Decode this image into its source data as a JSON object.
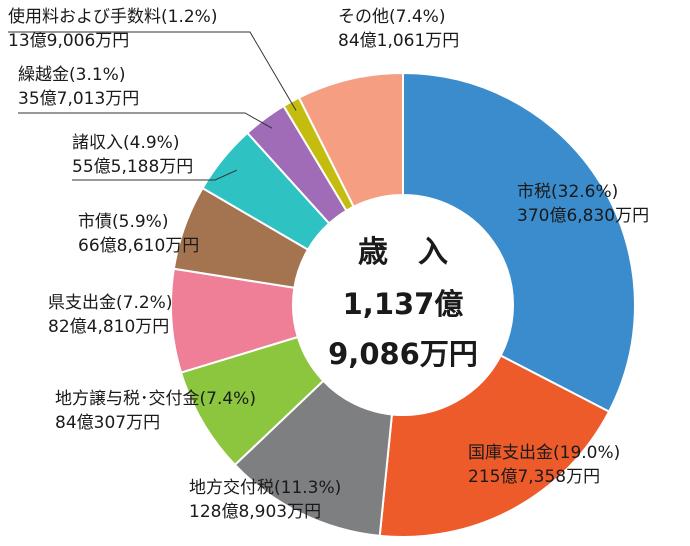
{
  "chart_data": {
    "type": "pie",
    "title": "歳　入",
    "total_line1": "1,137億",
    "total_line2": "9,086万円",
    "slices": [
      {
        "name": "市税",
        "percent": 32.6,
        "pct_label": "(32.6%)",
        "amount": "370億6,830万円",
        "color": "#3a8ccc"
      },
      {
        "name": "国庫支出金",
        "percent": 19.0,
        "pct_label": "(19.0%)",
        "amount": "215億7,358万円",
        "color": "#ee5b2b"
      },
      {
        "name": "地方交付税",
        "percent": 11.3,
        "pct_label": "(11.3%)",
        "amount": "128億8,903万円",
        "color": "#7e7f81"
      },
      {
        "name": "地方譲与税･交付金",
        "percent": 7.4,
        "pct_label": "(7.4%)",
        "amount": "84億307万円",
        "color": "#8cc63f"
      },
      {
        "name": "県支出金",
        "percent": 7.2,
        "pct_label": "(7.2%)",
        "amount": "82億4,810万円",
        "color": "#ef7f97"
      },
      {
        "name": "市債",
        "percent": 5.9,
        "pct_label": "(5.9%)",
        "amount": "66億8,610万円",
        "color": "#a47450"
      },
      {
        "name": "諸収入",
        "percent": 4.9,
        "pct_label": "(4.9%)",
        "amount": "55億5,188万円",
        "color": "#2ec2c2"
      },
      {
        "name": "繰越金",
        "percent": 3.1,
        "pct_label": "(3.1%)",
        "amount": "35億7,013万円",
        "color": "#a06cb8"
      },
      {
        "name": "使用料および手数料",
        "percent": 1.2,
        "pct_label": "(1.2%)",
        "amount": "13億9,006万円",
        "color": "#c4bd10"
      },
      {
        "name": "その他",
        "percent": 7.4,
        "pct_label": "(7.4%)",
        "amount": "84億1,061万円",
        "color": "#f59e82"
      }
    ]
  }
}
